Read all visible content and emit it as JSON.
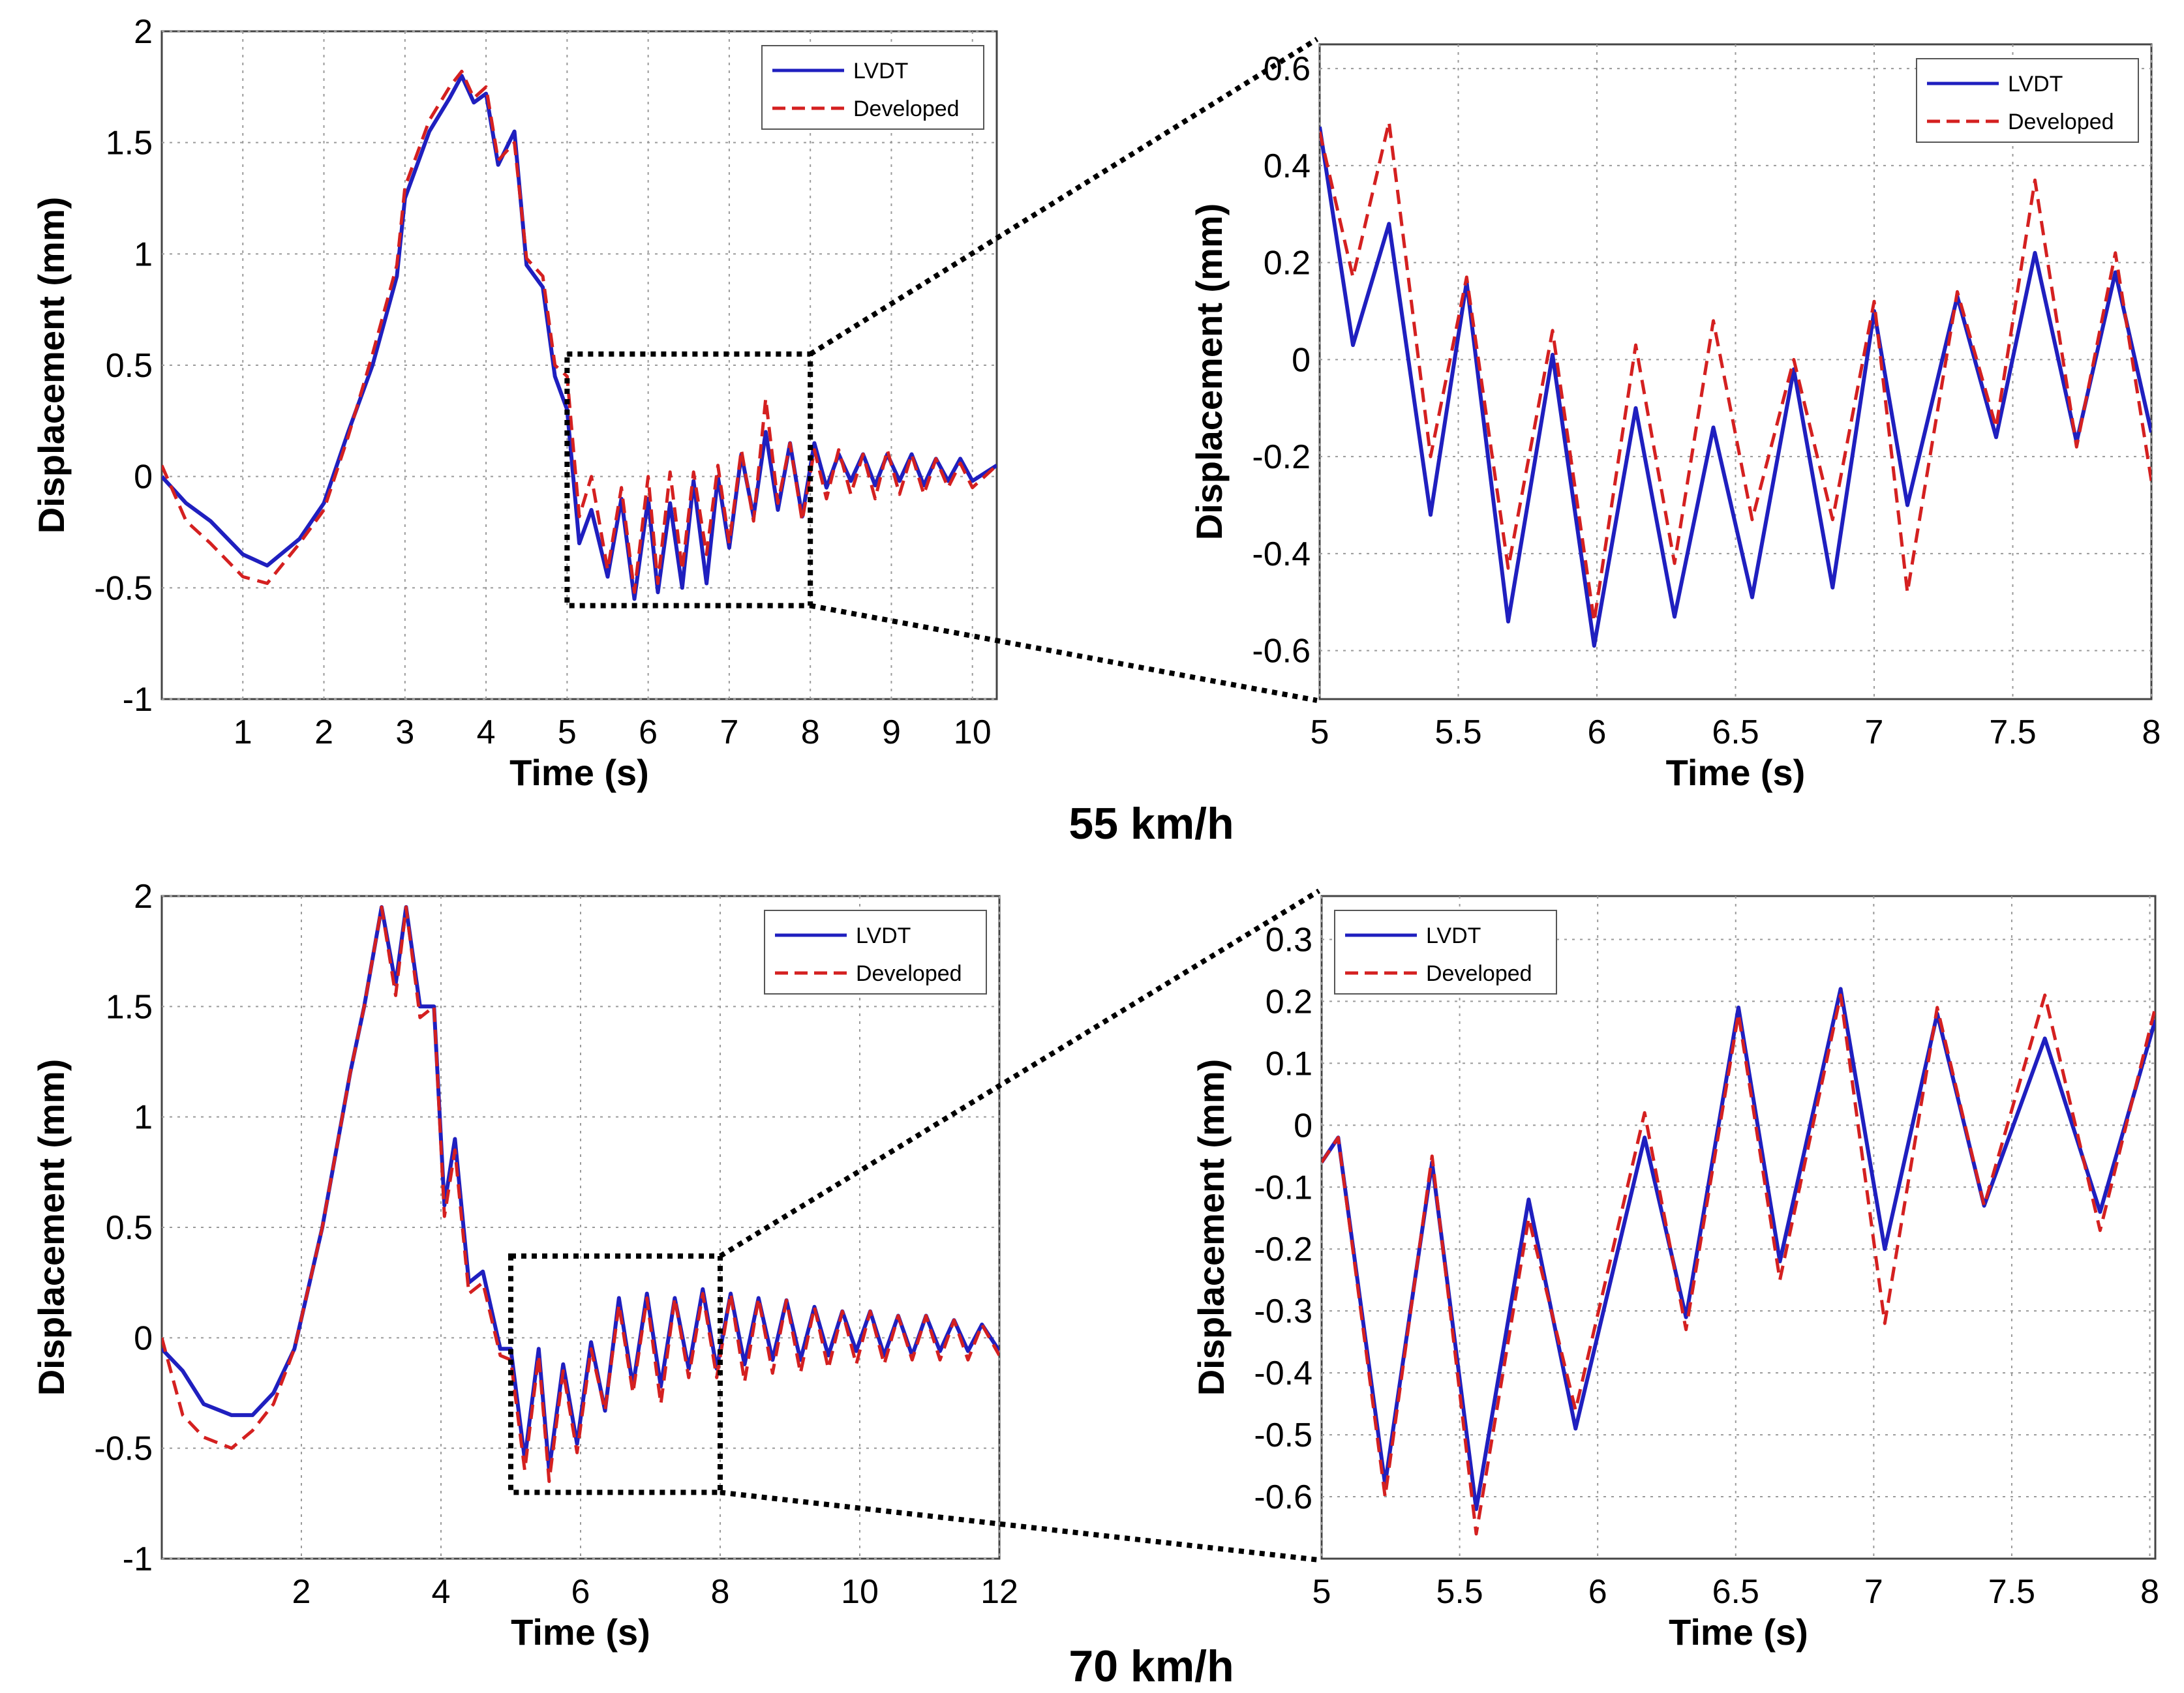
{
  "colors": {
    "lvdt": "#1f1fbf",
    "developed": "#d42020",
    "grid": "#9a9a9a",
    "axis": "#444444",
    "connector": "#000000"
  },
  "chart_data": [
    {
      "id": "p1",
      "type": "line",
      "xlabel": "Time (s)",
      "ylabel": "Displacement (mm)",
      "xlim": [
        0,
        10.3
      ],
      "ylim": [
        -1,
        2
      ],
      "xticks": [
        1,
        2,
        3,
        4,
        5,
        6,
        7,
        8,
        9,
        10
      ],
      "xtick_labels": [
        "1",
        "2",
        "3",
        "4",
        "5",
        "6",
        "7",
        "8",
        "9",
        "10"
      ],
      "yticks": [
        -1,
        -0.5,
        0,
        0.5,
        1,
        1.5,
        2
      ],
      "ytick_labels": [
        "-1",
        "-0.5",
        "0",
        "0.5",
        "1",
        "1.5",
        "2"
      ],
      "legend": [
        "LVDT",
        "Developed"
      ],
      "legend_position": "top-right",
      "zoom_box": {
        "x": [
          5,
          8
        ],
        "y": [
          -0.58,
          0.55
        ]
      },
      "series": [
        {
          "name": "LVDT",
          "x": [
            0,
            0.3,
            0.6,
            1.0,
            1.3,
            1.7,
            2.0,
            2.3,
            2.6,
            2.9,
            3.0,
            3.3,
            3.55,
            3.7,
            3.85,
            4.0,
            4.15,
            4.35,
            4.5,
            4.7,
            4.85,
            5.0,
            5.15,
            5.3,
            5.5,
            5.67,
            5.83,
            6.0,
            6.12,
            6.27,
            6.42,
            6.56,
            6.72,
            6.86,
            7.0,
            7.15,
            7.3,
            7.45,
            7.6,
            7.75,
            7.9,
            8.05,
            8.2,
            8.35,
            8.5,
            8.65,
            8.8,
            8.95,
            9.1,
            9.25,
            9.4,
            9.55,
            9.7,
            9.85,
            10.0,
            10.3
          ],
          "y": [
            0,
            -0.12,
            -0.2,
            -0.35,
            -0.4,
            -0.28,
            -0.12,
            0.2,
            0.5,
            0.9,
            1.25,
            1.55,
            1.7,
            1.8,
            1.68,
            1.72,
            1.4,
            1.55,
            0.95,
            0.85,
            0.45,
            0.3,
            -0.3,
            -0.15,
            -0.45,
            -0.1,
            -0.55,
            -0.1,
            -0.52,
            -0.12,
            -0.5,
            -0.02,
            -0.48,
            0.0,
            -0.32,
            0.1,
            -0.18,
            0.2,
            -0.15,
            0.15,
            -0.18,
            0.15,
            -0.05,
            0.1,
            -0.02,
            0.1,
            -0.04,
            0.1,
            -0.02,
            0.1,
            -0.04,
            0.08,
            -0.02,
            0.08,
            -0.02,
            0.05
          ]
        },
        {
          "name": "Developed",
          "x": [
            0,
            0.3,
            0.6,
            1.0,
            1.3,
            1.7,
            2.0,
            2.3,
            2.6,
            2.9,
            3.0,
            3.3,
            3.55,
            3.7,
            3.85,
            4.0,
            4.15,
            4.35,
            4.5,
            4.7,
            4.85,
            5.0,
            5.15,
            5.3,
            5.5,
            5.67,
            5.83,
            6.0,
            6.12,
            6.27,
            6.42,
            6.56,
            6.72,
            6.86,
            7.0,
            7.15,
            7.3,
            7.45,
            7.6,
            7.75,
            7.9,
            8.05,
            8.2,
            8.35,
            8.5,
            8.65,
            8.8,
            8.95,
            9.1,
            9.25,
            9.4,
            9.55,
            9.7,
            9.85,
            10.0,
            10.3
          ],
          "y": [
            0.05,
            -0.2,
            -0.3,
            -0.45,
            -0.48,
            -0.3,
            -0.15,
            0.18,
            0.55,
            0.95,
            1.3,
            1.6,
            1.75,
            1.82,
            1.7,
            1.75,
            1.42,
            1.5,
            0.98,
            0.9,
            0.5,
            0.45,
            -0.18,
            0.0,
            -0.42,
            -0.05,
            -0.52,
            0.0,
            -0.48,
            0.02,
            -0.42,
            0.02,
            -0.35,
            0.05,
            -0.3,
            0.12,
            -0.2,
            0.35,
            -0.12,
            0.15,
            -0.2,
            0.12,
            -0.1,
            0.12,
            -0.08,
            0.1,
            -0.1,
            0.12,
            -0.08,
            0.1,
            -0.08,
            0.08,
            -0.05,
            0.06,
            -0.05,
            0.05
          ]
        }
      ]
    },
    {
      "id": "p2",
      "type": "line",
      "xlabel": "Time (s)",
      "ylabel": "Displacement (mm)",
      "xlim": [
        5,
        8
      ],
      "ylim": [
        -0.7,
        0.65
      ],
      "xticks": [
        5,
        5.5,
        6,
        6.5,
        7,
        7.5,
        8
      ],
      "xtick_labels": [
        "5",
        "5.5",
        "6",
        "6.5",
        "7",
        "7.5",
        "8"
      ],
      "yticks": [
        -0.6,
        -0.4,
        -0.2,
        0,
        0.2,
        0.4,
        0.6
      ],
      "ytick_labels": [
        "-0.6",
        "-0.4",
        "-0.2",
        "0",
        "0.2",
        "0.4",
        "0.6"
      ],
      "legend": [
        "LVDT",
        "Developed"
      ],
      "legend_position": "top-right",
      "series": [
        {
          "name": "LVDT",
          "x": [
            5.0,
            5.12,
            5.25,
            5.4,
            5.53,
            5.68,
            5.84,
            5.99,
            6.14,
            6.28,
            6.42,
            6.56,
            6.71,
            6.85,
            7.0,
            7.12,
            7.3,
            7.44,
            7.58,
            7.73,
            7.87,
            8.0
          ],
          "y": [
            0.48,
            0.03,
            0.28,
            -0.32,
            0.16,
            -0.54,
            0.01,
            -0.59,
            -0.1,
            -0.53,
            -0.14,
            -0.49,
            -0.02,
            -0.47,
            0.1,
            -0.3,
            0.13,
            -0.16,
            0.22,
            -0.17,
            0.18,
            -0.15
          ]
        },
        {
          "name": "Developed",
          "x": [
            5.0,
            5.12,
            5.25,
            5.4,
            5.53,
            5.68,
            5.84,
            5.99,
            6.14,
            6.28,
            6.42,
            6.56,
            6.71,
            6.85,
            7.0,
            7.12,
            7.3,
            7.44,
            7.58,
            7.73,
            7.87,
            8.0
          ],
          "y": [
            0.47,
            0.17,
            0.49,
            -0.2,
            0.17,
            -0.43,
            0.06,
            -0.54,
            0.03,
            -0.42,
            0.08,
            -0.33,
            0.0,
            -0.33,
            0.12,
            -0.48,
            0.14,
            -0.14,
            0.37,
            -0.18,
            0.22,
            -0.25
          ]
        }
      ]
    },
    {
      "id": "p3",
      "type": "line",
      "xlabel": "Time (s)",
      "ylabel": "Displacement (mm)",
      "xlim": [
        0,
        12
      ],
      "ylim": [
        -1,
        2
      ],
      "xticks": [
        2,
        4,
        6,
        8,
        10,
        12
      ],
      "xtick_labels": [
        "2",
        "4",
        "6",
        "8",
        "10",
        "12"
      ],
      "yticks": [
        -1,
        -0.5,
        0,
        0.5,
        1,
        1.5,
        2
      ],
      "ytick_labels": [
        "-1",
        "-0.5",
        "0",
        "0.5",
        "1",
        "1.5",
        "2"
      ],
      "legend": [
        "LVDT",
        "Developed"
      ],
      "legend_position": "top-right",
      "zoom_box": {
        "x": [
          5,
          8
        ],
        "y": [
          -0.7,
          0.37
        ]
      },
      "series": [
        {
          "name": "LVDT",
          "x": [
            0,
            0.3,
            0.6,
            1.0,
            1.3,
            1.6,
            1.9,
            2.3,
            2.7,
            2.9,
            3.15,
            3.35,
            3.5,
            3.7,
            3.9,
            4.05,
            4.2,
            4.4,
            4.6,
            4.85,
            5.0,
            5.2,
            5.4,
            5.55,
            5.75,
            5.95,
            6.15,
            6.35,
            6.55,
            6.75,
            6.95,
            7.15,
            7.35,
            7.55,
            7.75,
            7.95,
            8.15,
            8.35,
            8.55,
            8.75,
            8.95,
            9.15,
            9.35,
            9.55,
            9.75,
            9.95,
            10.15,
            10.35,
            10.55,
            10.75,
            10.95,
            11.15,
            11.35,
            11.55,
            11.75,
            12.0
          ],
          "y": [
            -0.05,
            -0.15,
            -0.3,
            -0.35,
            -0.35,
            -0.25,
            -0.05,
            0.5,
            1.2,
            1.5,
            1.95,
            1.6,
            1.95,
            1.5,
            1.5,
            0.6,
            0.9,
            0.25,
            0.3,
            -0.05,
            -0.05,
            -0.55,
            -0.05,
            -0.6,
            -0.12,
            -0.48,
            -0.02,
            -0.33,
            0.18,
            -0.22,
            0.2,
            -0.22,
            0.18,
            -0.14,
            0.22,
            -0.14,
            0.2,
            -0.12,
            0.18,
            -0.1,
            0.17,
            -0.1,
            0.14,
            -0.08,
            0.12,
            -0.06,
            0.12,
            -0.08,
            0.1,
            -0.08,
            0.1,
            -0.06,
            0.08,
            -0.06,
            0.06,
            -0.06
          ]
        },
        {
          "name": "Developed",
          "x": [
            0,
            0.3,
            0.6,
            1.0,
            1.3,
            1.6,
            1.9,
            2.3,
            2.7,
            2.9,
            3.15,
            3.35,
            3.5,
            3.7,
            3.9,
            4.05,
            4.2,
            4.4,
            4.6,
            4.85,
            5.0,
            5.2,
            5.4,
            5.55,
            5.75,
            5.95,
            6.15,
            6.35,
            6.55,
            6.75,
            6.95,
            7.15,
            7.35,
            7.55,
            7.75,
            7.95,
            8.15,
            8.35,
            8.55,
            8.75,
            8.95,
            9.15,
            9.35,
            9.55,
            9.75,
            9.95,
            10.15,
            10.35,
            10.55,
            10.75,
            10.95,
            11.15,
            11.35,
            11.55,
            11.75,
            12.0
          ],
          "y": [
            0.0,
            -0.35,
            -0.45,
            -0.5,
            -0.42,
            -0.3,
            -0.05,
            0.5,
            1.2,
            1.5,
            1.95,
            1.55,
            1.95,
            1.45,
            1.5,
            0.55,
            0.85,
            0.2,
            0.25,
            -0.08,
            -0.1,
            -0.6,
            -0.08,
            -0.65,
            -0.15,
            -0.52,
            -0.05,
            -0.33,
            0.15,
            -0.25,
            0.18,
            -0.3,
            0.18,
            -0.18,
            0.2,
            -0.18,
            0.2,
            -0.2,
            0.18,
            -0.16,
            0.17,
            -0.16,
            0.14,
            -0.14,
            0.12,
            -0.12,
            0.12,
            -0.12,
            0.1,
            -0.1,
            0.1,
            -0.1,
            0.08,
            -0.1,
            0.06,
            -0.08
          ]
        }
      ]
    },
    {
      "id": "p4",
      "type": "line",
      "xlabel": "Time (s)",
      "ylabel": "Displacement (mm)",
      "xlim": [
        5,
        8.02
      ],
      "ylim": [
        -0.7,
        0.37
      ],
      "xticks": [
        5,
        5.5,
        6,
        6.5,
        7,
        7.5,
        8
      ],
      "xtick_labels": [
        "5",
        "5.5",
        "6",
        "6.5",
        "7",
        "7.5",
        "8"
      ],
      "yticks": [
        -0.6,
        -0.5,
        -0.4,
        -0.3,
        -0.2,
        -0.1,
        0,
        0.1,
        0.2,
        0.3
      ],
      "ytick_labels": [
        "-0.6",
        "-0.5",
        "-0.4",
        "-0.3",
        "-0.2",
        "-0.1",
        "0",
        "0.1",
        "0.2",
        "0.3"
      ],
      "legend": [
        "LVDT",
        "Developed"
      ],
      "legend_position": "top-left",
      "series": [
        {
          "name": "LVDT",
          "x": [
            5.0,
            5.06,
            5.23,
            5.4,
            5.56,
            5.75,
            5.92,
            6.17,
            6.32,
            6.51,
            6.66,
            6.88,
            7.04,
            7.23,
            7.4,
            7.62,
            7.82,
            8.02
          ],
          "y": [
            -0.06,
            -0.02,
            -0.58,
            -0.06,
            -0.62,
            -0.12,
            -0.49,
            -0.02,
            -0.31,
            0.19,
            -0.22,
            0.22,
            -0.2,
            0.18,
            -0.13,
            0.14,
            -0.14,
            0.17
          ]
        },
        {
          "name": "Developed",
          "x": [
            5.0,
            5.06,
            5.23,
            5.4,
            5.56,
            5.75,
            5.92,
            6.17,
            6.32,
            6.51,
            6.66,
            6.88,
            7.04,
            7.23,
            7.4,
            7.62,
            7.82,
            8.02
          ],
          "y": [
            -0.06,
            -0.02,
            -0.6,
            -0.05,
            -0.66,
            -0.15,
            -0.46,
            0.02,
            -0.33,
            0.18,
            -0.25,
            0.21,
            -0.32,
            0.19,
            -0.13,
            0.21,
            -0.17,
            0.19
          ]
        }
      ]
    }
  ],
  "captions": {
    "top": "55 km/h",
    "bottom": "70 km/h"
  }
}
